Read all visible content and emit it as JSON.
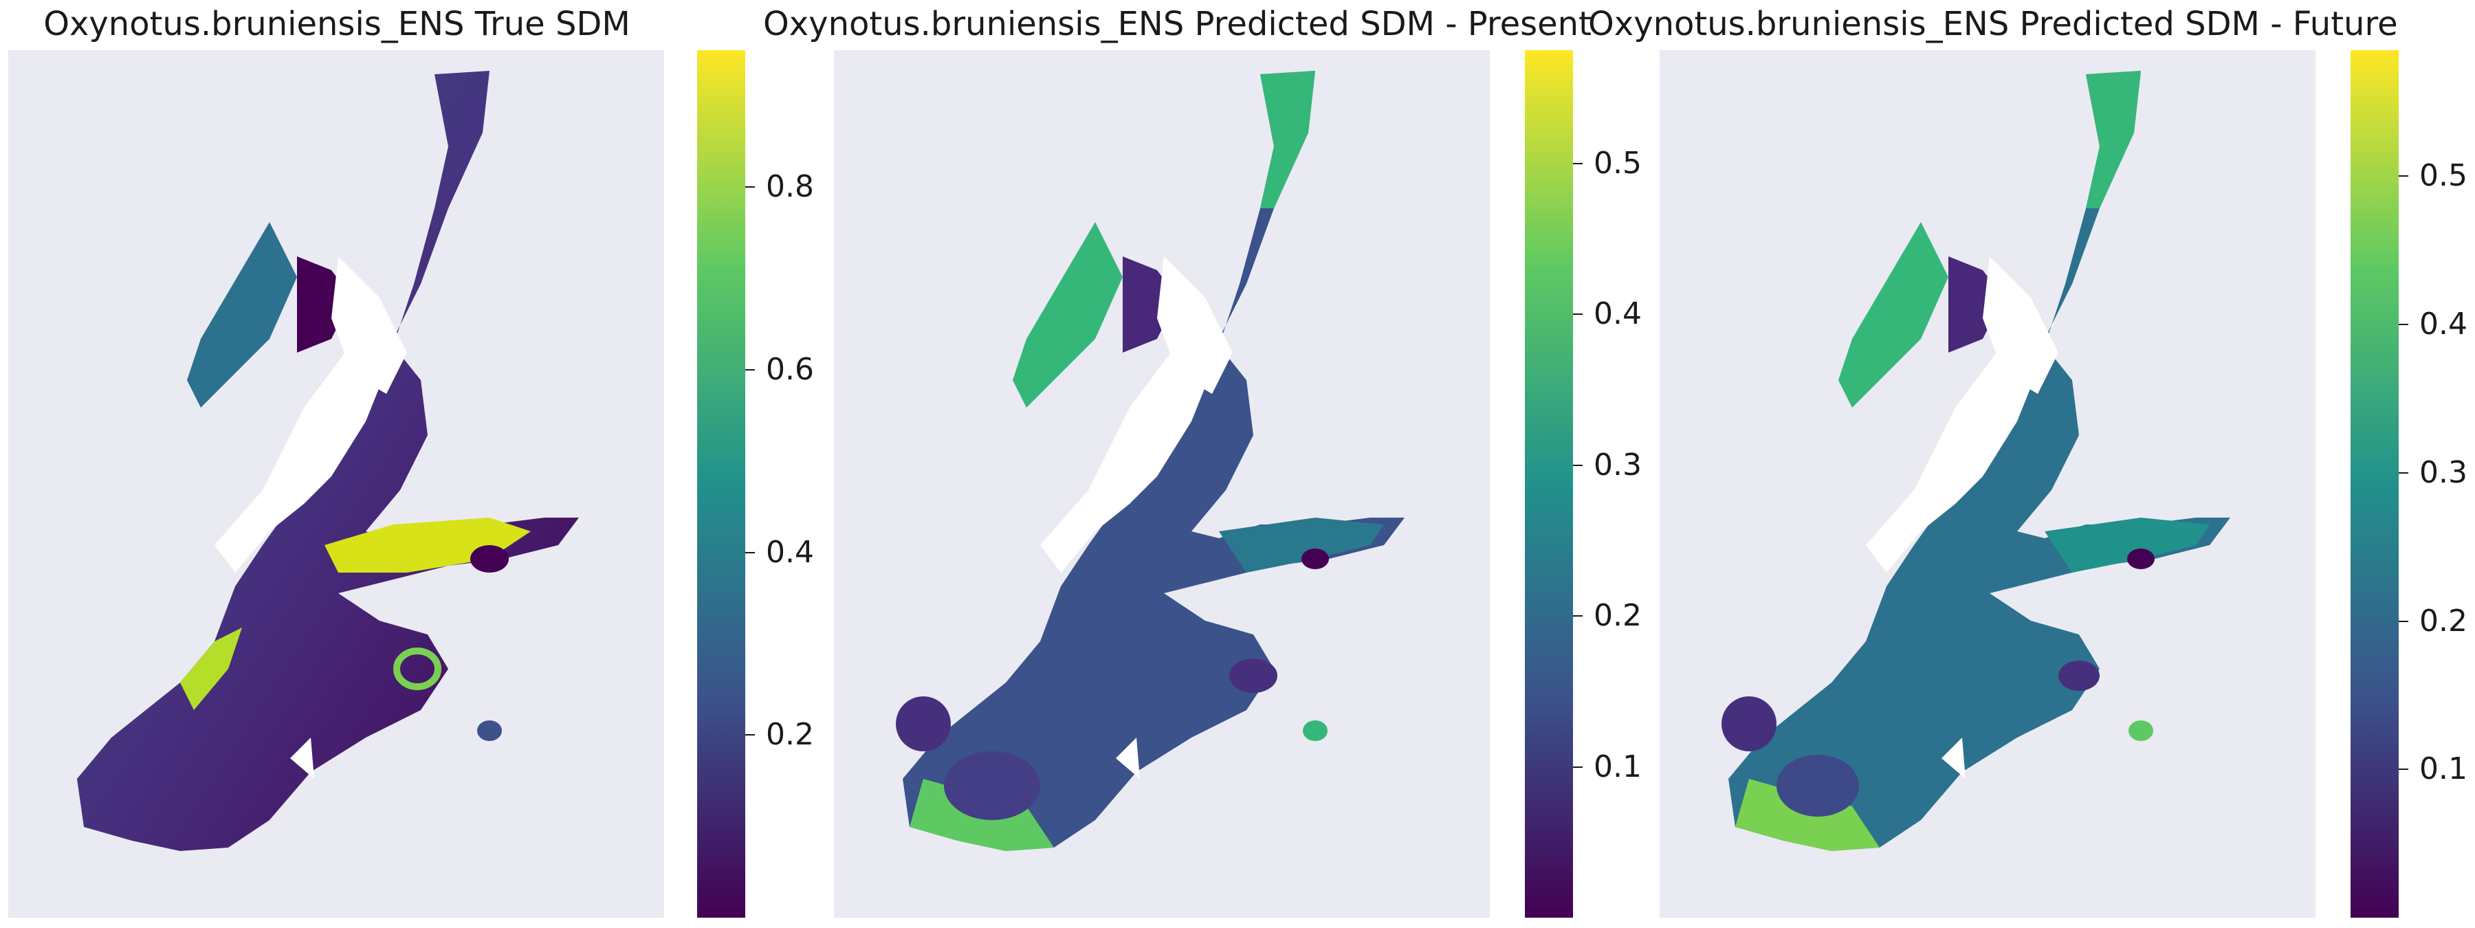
{
  "panels": [
    {
      "title": "Oxynotus.bruniensis_ENS True SDM",
      "colorbar": {
        "min": 0.0,
        "max": 0.95,
        "ticks": [
          "0.2",
          "0.4",
          "0.6",
          "0.8"
        ],
        "tick_values": [
          0.2,
          0.4,
          0.6,
          0.8
        ]
      }
    },
    {
      "title": "Oxynotus.bruniensis_ENS Predicted SDM - Present",
      "colorbar": {
        "min": 0.0,
        "max": 0.575,
        "ticks": [
          "0.1",
          "0.2",
          "0.3",
          "0.4",
          "0.5"
        ],
        "tick_values": [
          0.1,
          0.2,
          0.3,
          0.4,
          0.5
        ]
      }
    },
    {
      "title": "Oxynotus.bruniensis_ENS Predicted SDM - Future",
      "colorbar": {
        "min": 0.0,
        "max": 0.585,
        "ticks": [
          "0.1",
          "0.2",
          "0.3",
          "0.4",
          "0.5"
        ],
        "tick_values": [
          0.1,
          0.2,
          0.3,
          0.4,
          0.5
        ]
      }
    }
  ],
  "colormap": "viridis",
  "colors": {
    "background": "#eaeaf2",
    "land": "#ffffff",
    "viridis_low": "#440154",
    "viridis_mid": "#21918c",
    "viridis_high": "#fde725"
  }
}
